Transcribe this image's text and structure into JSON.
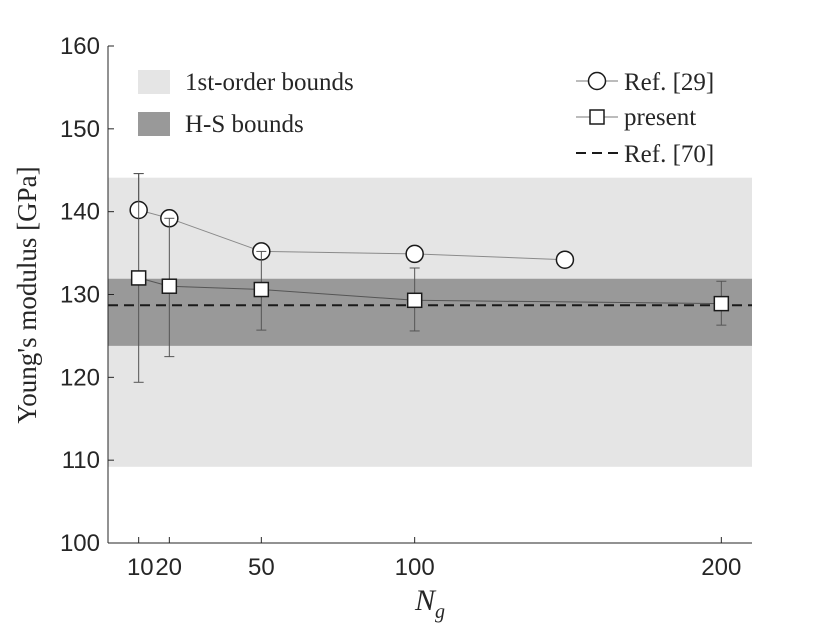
{
  "chart_data": {
    "type": "scatter",
    "xlabel": "N",
    "xlabel_subscript": "g",
    "ylabel": "Young's modulus [GPa]",
    "xlim": [
      0,
      210
    ],
    "ylim": [
      100,
      160
    ],
    "x_ticks": [
      10,
      20,
      50,
      100,
      200
    ],
    "x_tick_labels": [
      "10",
      "20",
      "50",
      "100",
      "200"
    ],
    "y_ticks": [
      100,
      110,
      120,
      130,
      140,
      150,
      160
    ],
    "y_tick_labels": [
      "100",
      "110",
      "120",
      "130",
      "140",
      "150",
      "160"
    ],
    "grid": false,
    "bands": [
      {
        "name": "1st-order bounds",
        "y_min": 109.2,
        "y_max": 144.1,
        "color": "#e5e5e5"
      },
      {
        "name": "H-S bounds",
        "y_min": 123.8,
        "y_max": 131.9,
        "color": "#999999"
      }
    ],
    "series": [
      {
        "name": "Ref. [29]",
        "marker": "circle",
        "x": [
          10,
          20,
          50,
          100,
          149
        ],
        "y": [
          140.2,
          139.2,
          135.2,
          134.9,
          134.2
        ],
        "error_low": [
          null,
          null,
          null,
          null,
          null
        ],
        "error_high": [
          144.6,
          139.2,
          135.2,
          134.9,
          null
        ]
      },
      {
        "name": "present",
        "marker": "square",
        "x": [
          10,
          20,
          50,
          100,
          200
        ],
        "y": [
          132.0,
          131.0,
          130.6,
          129.3,
          128.9
        ],
        "error_low": [
          119.4,
          122.5,
          125.7,
          125.6,
          126.3
        ],
        "error_high": [
          144.6,
          139.2,
          135.2,
          133.2,
          131.6
        ]
      },
      {
        "name": "Ref. [70]",
        "line_style": "dashed",
        "y_const": 128.7
      }
    ],
    "legend": {
      "upper_left": [
        "1st-order bounds",
        "H-S bounds"
      ],
      "upper_right": [
        "Ref. [29]",
        "present",
        "Ref. [70]"
      ]
    }
  }
}
